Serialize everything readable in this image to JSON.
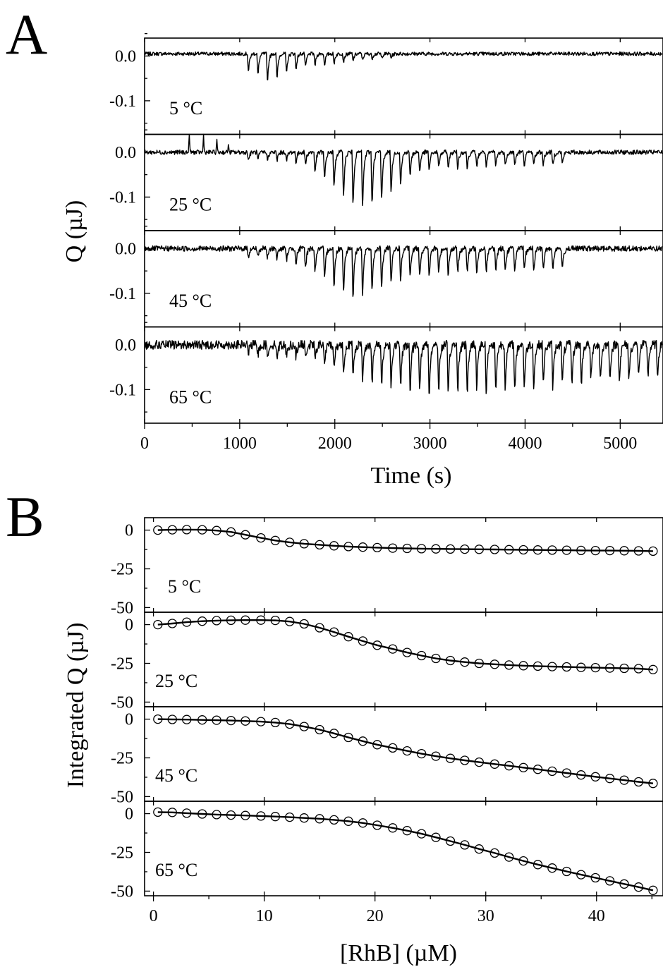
{
  "chart_data": [
    {
      "panel": "A",
      "type": "line",
      "xlabel": "Time (s)",
      "ylabel": "Q (µJ)",
      "xlim": [
        0,
        5450
      ],
      "ylim": [
        -0.175,
        0.04
      ],
      "xticks": [
        0,
        1000,
        2000,
        3000,
        4000,
        5000
      ],
      "yticks": [
        0.0,
        -0.1
      ],
      "ytick_labels": [
        "0.0",
        "-0.1"
      ],
      "grid": false,
      "subplots": [
        {
          "label": "5 °C",
          "baseline": 0.005,
          "noise": 0.004,
          "inject_start": 1080,
          "inject_interval": 100,
          "inject_count": 44,
          "peaks": [
            -0.045,
            -0.055,
            -0.07,
            -0.065,
            -0.05,
            -0.04,
            -0.035,
            -0.03,
            -0.028,
            -0.025,
            -0.02,
            -0.018,
            -0.015,
            -0.012,
            -0.01,
            -0.01
          ]
        },
        {
          "label": "25 °C",
          "baseline": 0.0,
          "noise": 0.005,
          "inject_start": 1080,
          "inject_interval": 100,
          "inject_count": 44,
          "peaks": [
            -0.02,
            -0.02,
            -0.02,
            -0.022,
            -0.022,
            -0.025,
            -0.03,
            -0.05,
            -0.07,
            -0.09,
            -0.11,
            -0.13,
            -0.14,
            -0.13,
            -0.12,
            -0.1,
            -0.08,
            -0.06,
            -0.05,
            -0.045,
            -0.04,
            -0.04,
            -0.04,
            -0.04,
            -0.04,
            -0.038,
            -0.035,
            -0.035,
            -0.035,
            -0.033,
            -0.033,
            -0.032,
            -0.032,
            -0.03
          ],
          "spikes": [
            [
              470,
              0.045
            ],
            [
              620,
              0.045
            ],
            [
              760,
              0.03
            ],
            [
              880,
              0.02
            ]
          ]
        },
        {
          "label": "45 °C",
          "baseline": 0.0,
          "noise": 0.006,
          "inject_start": 1080,
          "inject_interval": 100,
          "inject_count": 44,
          "peaks": [
            -0.02,
            -0.02,
            -0.025,
            -0.025,
            -0.03,
            -0.04,
            -0.05,
            -0.06,
            -0.08,
            -0.1,
            -0.11,
            -0.125,
            -0.12,
            -0.11,
            -0.1,
            -0.09,
            -0.08,
            -0.075,
            -0.07,
            -0.07,
            -0.065,
            -0.065,
            -0.062,
            -0.06,
            -0.06,
            -0.06,
            -0.058,
            -0.058,
            -0.056,
            -0.056,
            -0.055,
            -0.055,
            -0.055,
            -0.055
          ]
        },
        {
          "label": "65 °C",
          "baseline": 0.0,
          "noise": 0.01,
          "inject_start": 1080,
          "inject_interval": 100,
          "inject_count": 44,
          "peaks": [
            -0.02,
            -0.025,
            -0.03,
            -0.03,
            -0.03,
            -0.03,
            -0.035,
            -0.04,
            -0.05,
            -0.06,
            -0.075,
            -0.08,
            -0.09,
            -0.1,
            -0.1,
            -0.105,
            -0.11,
            -0.12,
            -0.12,
            -0.13,
            -0.12,
            -0.13,
            -0.12,
            -0.13,
            -0.11,
            -0.12,
            -0.12,
            -0.11,
            -0.12,
            -0.11,
            -0.11,
            -0.1,
            -0.11,
            -0.1,
            -0.1,
            -0.1,
            -0.09,
            -0.09,
            -0.09,
            -0.09,
            -0.09,
            -0.08,
            -0.08,
            -0.08
          ]
        }
      ]
    },
    {
      "panel": "B",
      "type": "scatter",
      "xlabel": "[RhB] (µM)",
      "ylabel": "Integrated Q (µJ)",
      "xlim": [
        -0.8,
        46
      ],
      "ylim": [
        -53,
        8
      ],
      "xticks": [
        0,
        10,
        20,
        30,
        40
      ],
      "yticks": [
        0,
        -25,
        -50
      ],
      "grid": false,
      "x": [
        0.4,
        1.7,
        3.0,
        4.4,
        5.7,
        7.0,
        8.3,
        9.7,
        11.0,
        12.3,
        13.6,
        15.0,
        16.3,
        17.6,
        18.9,
        20.2,
        21.6,
        22.9,
        24.2,
        25.5,
        26.8,
        28.1,
        29.4,
        30.8,
        32.1,
        33.4,
        34.7,
        36.0,
        37.3,
        38.6,
        39.9,
        41.2,
        42.5,
        43.8,
        45.1
      ],
      "subplots": [
        {
          "label": "5 °C",
          "y": [
            0.0,
            0.2,
            0.3,
            0.2,
            -0.3,
            -1.2,
            -3.0,
            -5.0,
            -6.7,
            -7.9,
            -8.8,
            -9.5,
            -10.1,
            -10.6,
            -11.0,
            -11.3,
            -11.6,
            -11.8,
            -12.0,
            -12.1,
            -12.2,
            -12.3,
            -12.4,
            -12.5,
            -12.6,
            -12.7,
            -12.8,
            -12.9,
            -13.0,
            -13.1,
            -13.2,
            -13.2,
            -13.3,
            -13.4,
            -13.6
          ]
        },
        {
          "label": "25 °C",
          "y": [
            0.0,
            0.7,
            1.6,
            2.2,
            2.6,
            2.8,
            2.9,
            2.9,
            2.7,
            2.0,
            0.5,
            -2.0,
            -4.8,
            -7.8,
            -10.6,
            -13.3,
            -15.7,
            -18.0,
            -20.0,
            -21.8,
            -23.2,
            -24.2,
            -25.0,
            -25.6,
            -26.1,
            -26.5,
            -26.8,
            -27.1,
            -27.3,
            -27.6,
            -27.8,
            -28.0,
            -28.2,
            -28.4,
            -29.0
          ]
        },
        {
          "label": "45 °C",
          "y": [
            0.0,
            -0.2,
            -0.3,
            -0.5,
            -0.7,
            -0.9,
            -1.2,
            -1.6,
            -2.2,
            -3.2,
            -4.8,
            -6.8,
            -9.2,
            -11.8,
            -14.2,
            -16.5,
            -18.6,
            -20.5,
            -22.3,
            -23.9,
            -25.3,
            -26.6,
            -27.8,
            -29.0,
            -30.1,
            -31.3,
            -32.4,
            -33.6,
            -34.8,
            -36.0,
            -37.2,
            -38.3,
            -39.4,
            -40.5,
            -41.5
          ]
        },
        {
          "label": "65 °C",
          "y": [
            1.0,
            0.8,
            0.3,
            -0.2,
            -0.6,
            -0.9,
            -1.2,
            -1.5,
            -1.9,
            -2.3,
            -2.8,
            -3.3,
            -4.0,
            -4.9,
            -6.0,
            -7.5,
            -9.2,
            -11.0,
            -13.0,
            -15.3,
            -17.7,
            -20.2,
            -22.8,
            -25.4,
            -28.0,
            -30.5,
            -32.9,
            -35.1,
            -37.3,
            -39.4,
            -41.4,
            -43.4,
            -45.4,
            -47.4,
            -49.5
          ]
        }
      ]
    }
  ],
  "figure": {
    "panel_a_letter": "A",
    "panel_b_letter": "B"
  }
}
